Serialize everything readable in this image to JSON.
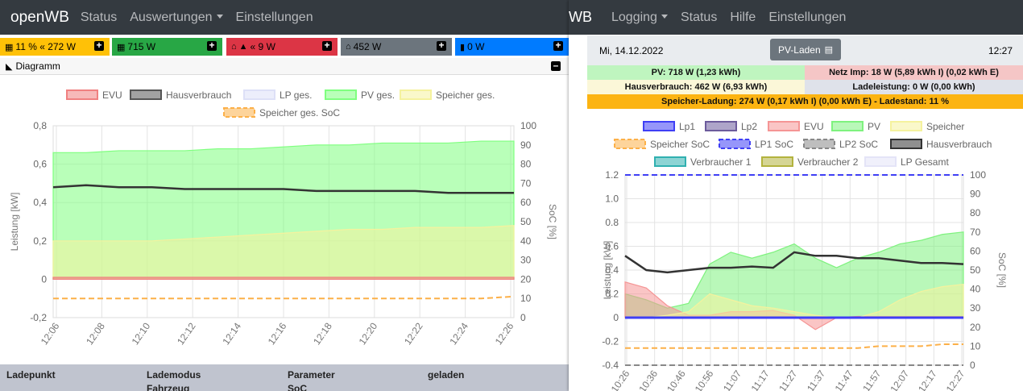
{
  "left": {
    "brand": "openWB",
    "nav": [
      "Status",
      "Auswertungen",
      "Einstellungen"
    ],
    "tiles": [
      {
        "text": "11 % « 272 W",
        "color": "#ffc107"
      },
      {
        "text": "715 W",
        "color": "#28a745"
      },
      {
        "text": "« 9 W",
        "color": "#dc3545"
      },
      {
        "text": "452 W",
        "color": "#6c757d"
      },
      {
        "text": "0 W",
        "color": "#007bff"
      }
    ],
    "panel_title": "Diagramm",
    "table_headers": [
      "Ladepunkt",
      "Lademodus",
      "Parameter",
      "geladen"
    ],
    "table_sub": [
      "Fahrzeug",
      "SoC"
    ]
  },
  "right": {
    "brand": "WB",
    "nav": [
      "Logging",
      "Status",
      "Hilfe",
      "Einstellungen"
    ],
    "date": "Mi, 14.12.2022",
    "button": "PV-Laden",
    "time": "12:27",
    "info": {
      "pv": "PV: 718 W (1,23 kWh)",
      "netz": "Netz Imp: 18 W (5,89 kWh I) (0,02 kWh E)",
      "haus": "Hausverbrauch: 462 W (6,93 kWh)",
      "lade": "Ladeleistung: 0 W (0,00 kWh)",
      "speicher": "Speicher-Ladung: 274 W (0,17 kWh I) (0,00 kWh E) - Ladestand: 11 %"
    }
  },
  "chart_data": [
    {
      "type": "area",
      "legend": [
        {
          "name": "EVU",
          "color": "#f08080"
        },
        {
          "name": "Hausverbrauch",
          "color": "#555555"
        },
        {
          "name": "LP ges.",
          "color": "#dde0f7"
        },
        {
          "name": "PV ges.",
          "color": "#7fff7f"
        },
        {
          "name": "Speicher ges.",
          "color": "#f5f29e"
        },
        {
          "name": "Speicher ges. SoC",
          "color": "#fcb048",
          "dashed": true
        }
      ],
      "ylabel": "Leistung [kW]",
      "y2label": "SoC [%]",
      "ylim": [
        -0.2,
        0.8
      ],
      "y2lim": [
        0,
        100
      ],
      "yticks": [
        "0,8",
        "0,6",
        "0,4",
        "0,2",
        "0",
        "-0,2"
      ],
      "y2ticks": [
        "100",
        "90",
        "80",
        "70",
        "60",
        "50",
        "40",
        "30",
        "20",
        "10",
        "0"
      ],
      "xticks": [
        "12:06",
        "12:08",
        "12:10",
        "12:12",
        "12:14",
        "12:16",
        "12:18",
        "12:20",
        "12:22",
        "12:24",
        "12:26"
      ],
      "series": [
        {
          "name": "PV ges.",
          "values": [
            0.66,
            0.66,
            0.67,
            0.67,
            0.67,
            0.68,
            0.68,
            0.69,
            0.7,
            0.7,
            0.71,
            0.71,
            0.71,
            0.72,
            0.72
          ]
        },
        {
          "name": "Hausverbrauch",
          "values": [
            0.48,
            0.49,
            0.48,
            0.48,
            0.47,
            0.47,
            0.47,
            0.47,
            0.46,
            0.46,
            0.46,
            0.46,
            0.45,
            0.45,
            0.45
          ]
        },
        {
          "name": "Speicher ges.",
          "values": [
            0.2,
            0.2,
            0.2,
            0.2,
            0.21,
            0.22,
            0.23,
            0.24,
            0.25,
            0.26,
            0.26,
            0.27,
            0.27,
            0.27,
            0.28
          ]
        },
        {
          "name": "EVU",
          "values": [
            0.01,
            0.01,
            0.01,
            0.01,
            0.01,
            0.01,
            0.01,
            0.01,
            0.01,
            0.01,
            0.01,
            0.01,
            0.01,
            0.01,
            0.01
          ]
        },
        {
          "name": "Speicher ges. SoC",
          "values": [
            10,
            10,
            10,
            10,
            10,
            10,
            10,
            10,
            10,
            10,
            10,
            10,
            10,
            10,
            11
          ]
        }
      ]
    },
    {
      "type": "line",
      "legend": [
        {
          "name": "Lp1",
          "color": "#3f3ff5"
        },
        {
          "name": "Lp2",
          "color": "#6c5b9c"
        },
        {
          "name": "EVU",
          "color": "#f59595"
        },
        {
          "name": "PV",
          "color": "#7ff27f"
        },
        {
          "name": "Speicher",
          "color": "#f5f29e"
        },
        {
          "name": "Speicher SoC",
          "color": "#fcb048",
          "dashed": true
        },
        {
          "name": "LP1 SoC",
          "color": "#3f3ff5",
          "dashed": true
        },
        {
          "name": "LP2 SoC",
          "color": "#888888",
          "dashed": true
        },
        {
          "name": "Hausverbrauch",
          "color": "#333333"
        },
        {
          "name": "Verbraucher 1",
          "color": "#30b0b0"
        },
        {
          "name": "Verbraucher 2",
          "color": "#b3b33e"
        },
        {
          "name": "LP Gesamt",
          "color": "#e4e4f7"
        }
      ],
      "ylabel": "Leistung [kW]",
      "y2label": "SoC [%]",
      "ylim": [
        -0.4,
        1.2
      ],
      "y2lim": [
        0,
        100
      ],
      "yticks": [
        "1.2",
        "1.0",
        "0.8",
        "0.6",
        "0.4",
        "0.2",
        "0",
        "-0.2",
        "-0.4"
      ],
      "y2ticks": [
        "100",
        "90",
        "80",
        "70",
        "60",
        "50",
        "40",
        "30",
        "20",
        "10",
        "0"
      ],
      "xticks": [
        "10:26",
        "10:36",
        "10:46",
        "10:56",
        "11:07",
        "11:17",
        "11:27",
        "11:37",
        "11:47",
        "11:57",
        "12:07",
        "12:17",
        "12:27"
      ],
      "series": [
        {
          "name": "PV",
          "values": [
            0.2,
            0.15,
            0.08,
            0.12,
            0.45,
            0.55,
            0.5,
            0.55,
            0.62,
            0.5,
            0.42,
            0.5,
            0.55,
            0.62,
            0.65,
            0.7,
            0.72
          ]
        },
        {
          "name": "Hausverbrauch",
          "values": [
            0.52,
            0.4,
            0.38,
            0.4,
            0.42,
            0.42,
            0.43,
            0.42,
            0.55,
            0.52,
            0.52,
            0.5,
            0.5,
            0.48,
            0.46,
            0.46,
            0.45
          ]
        },
        {
          "name": "EVU",
          "values": [
            0.3,
            0.25,
            0.1,
            0.02,
            0.02,
            0.05,
            0.05,
            0.06,
            0.02,
            -0.1,
            0.0,
            0.01,
            0.01,
            0.01,
            0.01,
            0.01,
            0.01
          ]
        },
        {
          "name": "Speicher",
          "values": [
            0.0,
            0.0,
            0.02,
            0.05,
            0.2,
            0.15,
            0.1,
            0.08,
            0.05,
            0.02,
            0.0,
            0.0,
            0.05,
            0.15,
            0.22,
            0.26,
            0.28
          ]
        },
        {
          "name": "Speicher SoC",
          "values": [
            9,
            9,
            9,
            9,
            9,
            9,
            9,
            9,
            9,
            9,
            9,
            9,
            10,
            10,
            10,
            11,
            11
          ]
        },
        {
          "name": "LP1 SoC",
          "values": [
            100,
            100,
            100,
            100,
            100,
            100,
            100,
            100,
            100,
            100,
            100,
            100,
            100,
            100,
            100,
            100,
            100
          ]
        },
        {
          "name": "LP2 SoC",
          "values": [
            0,
            0,
            0,
            0,
            0,
            0,
            0,
            0,
            0,
            0,
            0,
            0,
            0,
            0,
            0,
            0,
            0
          ]
        },
        {
          "name": "Lp1",
          "values": [
            0,
            0,
            0,
            0,
            0,
            0,
            0,
            0,
            0,
            0,
            0,
            0,
            0,
            0,
            0,
            0,
            0
          ]
        }
      ]
    }
  ]
}
